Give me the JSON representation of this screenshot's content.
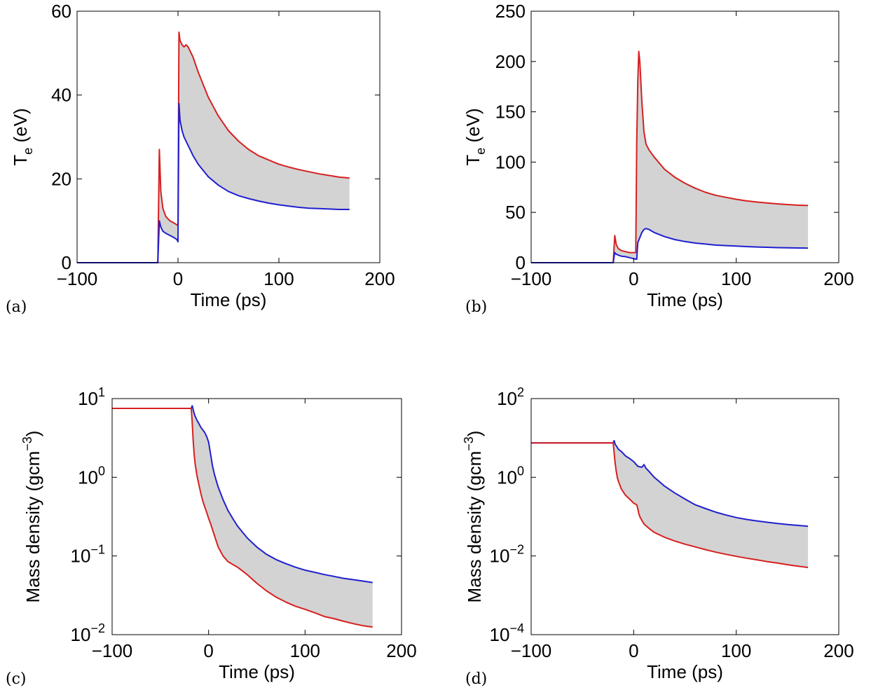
{
  "chart_data": [
    {
      "panel": "(a)",
      "type": "area",
      "xlabel": "Time (ps)",
      "ylabel_main": "T",
      "ylabel_sub": "e",
      "ylabel_unit": " (eV)",
      "xlim": [
        -100,
        200
      ],
      "ylim": [
        0,
        60
      ],
      "yscale": "linear",
      "xticks": [
        -100,
        0,
        100,
        200
      ],
      "xtick_labels": [
        "−100",
        "0",
        "100",
        "200"
      ],
      "yticks": [
        0,
        20,
        40,
        60
      ],
      "ytick_labels": [
        "0",
        "20",
        "40",
        "60"
      ],
      "fill_color": "#d3d3d3",
      "series": [
        {
          "color": "#d62020",
          "x": [
            -100,
            -20,
            -18.5,
            -17,
            -15,
            -12,
            -8,
            -4,
            -1,
            0,
            1,
            2,
            4,
            6,
            8,
            10,
            12,
            15,
            20,
            30,
            40,
            50,
            60,
            70,
            80,
            90,
            100,
            110,
            120,
            130,
            140,
            150,
            160,
            170
          ],
          "y": [
            0,
            0,
            27,
            17,
            13,
            11,
            10,
            9.5,
            9,
            9,
            55,
            53,
            52,
            51.5,
            52,
            51.5,
            50.5,
            49,
            45.5,
            39.5,
            35,
            31.5,
            29,
            27,
            25.5,
            24.5,
            23.5,
            22.8,
            22.2,
            21.7,
            21.2,
            20.8,
            20.4,
            20.2
          ]
        },
        {
          "color": "#1f1fd0",
          "x": [
            -100,
            -20,
            -18.5,
            -17,
            -15,
            -12,
            -8,
            -4,
            -1,
            0,
            1,
            2,
            4,
            6,
            8,
            10,
            12,
            15,
            20,
            30,
            40,
            50,
            60,
            70,
            80,
            90,
            100,
            110,
            120,
            130,
            140,
            150,
            160,
            170
          ],
          "y": [
            0,
            0,
            10,
            8.5,
            7.5,
            7,
            6.5,
            6,
            5.5,
            5,
            38,
            34,
            31.5,
            30,
            29,
            28,
            27,
            25.5,
            23.5,
            20.5,
            18.5,
            17,
            16,
            15.3,
            14.7,
            14.2,
            13.8,
            13.5,
            13.2,
            13,
            12.9,
            12.8,
            12.7,
            12.7
          ]
        }
      ]
    },
    {
      "panel": "(b)",
      "type": "area",
      "xlabel": "Time (ps)",
      "ylabel_main": "T",
      "ylabel_sub": "e",
      "ylabel_unit": " (eV)",
      "xlim": [
        -100,
        200
      ],
      "ylim": [
        0,
        250
      ],
      "yscale": "linear",
      "xticks": [
        -100,
        0,
        100,
        200
      ],
      "xtick_labels": [
        "−100",
        "0",
        "100",
        "200"
      ],
      "yticks": [
        0,
        50,
        100,
        150,
        200,
        250
      ],
      "ytick_labels": [
        "0",
        "50",
        "100",
        "150",
        "200",
        "250"
      ],
      "fill_color": "#d3d3d3",
      "series": [
        {
          "color": "#d62020",
          "x": [
            -100,
            -20,
            -18.5,
            -17,
            -15,
            -12,
            -8,
            -4,
            0,
            2,
            3,
            4,
            5,
            6,
            8,
            10,
            12,
            15,
            20,
            30,
            40,
            50,
            60,
            70,
            80,
            90,
            100,
            110,
            120,
            130,
            140,
            150,
            160,
            170
          ],
          "y": [
            0,
            0,
            27,
            18,
            14,
            12,
            11,
            10,
            10,
            10,
            120,
            180,
            210,
            200,
            160,
            130,
            118,
            112,
            105,
            93,
            85,
            79,
            74,
            70,
            67,
            65,
            63,
            61.5,
            60.3,
            59.3,
            58.5,
            57.8,
            57.2,
            56.8
          ]
        },
        {
          "color": "#1f1fd0",
          "x": [
            -100,
            -20,
            -18.5,
            -17,
            -15,
            -12,
            -8,
            -4,
            0,
            2,
            3,
            4,
            6,
            8,
            10,
            12,
            15,
            20,
            30,
            40,
            50,
            60,
            70,
            80,
            90,
            100,
            110,
            120,
            130,
            140,
            150,
            160,
            170
          ],
          "y": [
            0,
            0,
            10,
            8.5,
            7.5,
            6.5,
            6,
            5,
            4,
            3.5,
            3.5,
            20,
            25,
            30,
            33,
            34,
            33,
            30,
            26,
            23,
            21,
            19.5,
            18.5,
            17.5,
            17,
            16.5,
            16,
            15.6,
            15.3,
            15,
            14.8,
            14.6,
            14.5
          ]
        }
      ]
    },
    {
      "panel": "(c)",
      "type": "area",
      "xlabel": "Time (ps)",
      "ylabel_main": "Mass density (gcm",
      "ylabel_sup": "−3",
      "ylabel_end": ")",
      "xlim": [
        -100,
        200
      ],
      "ylim": [
        0.01,
        10
      ],
      "yscale": "log",
      "xticks": [
        -100,
        0,
        100,
        200
      ],
      "xtick_labels": [
        "−100",
        "0",
        "100",
        "200"
      ],
      "yticks": [
        0.01,
        0.1,
        1,
        10
      ],
      "ytick_base": [
        "10",
        "10",
        "10",
        "10"
      ],
      "ytick_exp": [
        "−2",
        "−1",
        "0",
        "1"
      ],
      "fill_color": "#d3d3d3",
      "series": [
        {
          "color": "#1f1fd0",
          "x": [
            -100,
            -18,
            -17,
            -16,
            -15,
            -14,
            -12,
            -10,
            -8,
            -6,
            -4,
            -2,
            0,
            2,
            4,
            6,
            8,
            10,
            15,
            20,
            25,
            30,
            40,
            50,
            60,
            70,
            80,
            90,
            100,
            110,
            120,
            130,
            140,
            150,
            160,
            170
          ],
          "y": [
            7.5,
            7.5,
            8.1,
            7.3,
            6.5,
            6,
            5.3,
            4.8,
            4.3,
            4,
            3.7,
            3.3,
            2.8,
            2,
            1.4,
            1.1,
            0.9,
            0.75,
            0.52,
            0.38,
            0.3,
            0.24,
            0.17,
            0.13,
            0.105,
            0.09,
            0.08,
            0.072,
            0.066,
            0.062,
            0.058,
            0.055,
            0.052,
            0.05,
            0.048,
            0.046
          ]
        },
        {
          "color": "#d62020",
          "x": [
            -100,
            -18,
            -17,
            -16,
            -15,
            -14,
            -12,
            -10,
            -8,
            -6,
            -4,
            -2,
            0,
            2,
            5,
            10,
            15,
            20,
            25,
            30,
            40,
            50,
            60,
            70,
            80,
            90,
            100,
            110,
            120,
            130,
            140,
            150,
            160,
            170
          ],
          "y": [
            7.5,
            7.5,
            5,
            3,
            2,
            1.5,
            1.05,
            0.8,
            0.62,
            0.5,
            0.42,
            0.36,
            0.3,
            0.26,
            0.2,
            0.13,
            0.1,
            0.085,
            0.078,
            0.072,
            0.058,
            0.045,
            0.036,
            0.03,
            0.026,
            0.023,
            0.021,
            0.019,
            0.017,
            0.016,
            0.0148,
            0.0138,
            0.013,
            0.0125
          ]
        }
      ]
    },
    {
      "panel": "(d)",
      "type": "area",
      "xlabel": "Time (ps)",
      "ylabel_main": "Mass density (gcm",
      "ylabel_sup": "−3",
      "ylabel_end": ")",
      "xlim": [
        -100,
        200
      ],
      "ylim": [
        0.0001,
        100
      ],
      "yscale": "log",
      "xticks": [
        -100,
        0,
        100,
        200
      ],
      "xtick_labels": [
        "−100",
        "0",
        "100",
        "200"
      ],
      "yticks": [
        0.0001,
        0.01,
        1,
        100
      ],
      "ytick_base": [
        "10",
        "10",
        "10",
        "10"
      ],
      "ytick_exp": [
        "−4",
        "−2",
        "0",
        "2"
      ],
      "fill_color": "#d3d3d3",
      "series": [
        {
          "color": "#1f1fd0",
          "x": [
            -100,
            -20,
            -19,
            -18,
            -17,
            -15,
            -12,
            -8,
            -4,
            0,
            4,
            8,
            10,
            12,
            15,
            20,
            30,
            40,
            50,
            60,
            70,
            80,
            90,
            100,
            110,
            120,
            130,
            140,
            150,
            160,
            170
          ],
          "y": [
            7.5,
            7.5,
            8.5,
            6.8,
            6.3,
            5.2,
            4.5,
            3.5,
            3,
            2.5,
            1.9,
            1.8,
            2.1,
            1.7,
            1.4,
            1,
            0.6,
            0.4,
            0.28,
            0.2,
            0.16,
            0.13,
            0.11,
            0.095,
            0.085,
            0.078,
            0.072,
            0.067,
            0.063,
            0.06,
            0.057
          ]
        },
        {
          "color": "#d62020",
          "x": [
            -100,
            -20,
            -19,
            -18,
            -17,
            -16,
            -15,
            -12,
            -8,
            -4,
            0,
            3,
            4,
            5,
            6,
            8,
            10,
            15,
            20,
            30,
            40,
            50,
            60,
            70,
            80,
            90,
            100,
            110,
            120,
            130,
            140,
            150,
            160,
            170
          ],
          "y": [
            7.5,
            7.5,
            4,
            2.2,
            1.4,
            1,
            0.8,
            0.5,
            0.35,
            0.28,
            0.22,
            0.2,
            0.16,
            0.12,
            0.1,
            0.08,
            0.065,
            0.05,
            0.04,
            0.03,
            0.024,
            0.02,
            0.017,
            0.0145,
            0.0125,
            0.011,
            0.0098,
            0.0088,
            0.008,
            0.0072,
            0.0066,
            0.006,
            0.0055,
            0.0051
          ]
        }
      ]
    }
  ]
}
